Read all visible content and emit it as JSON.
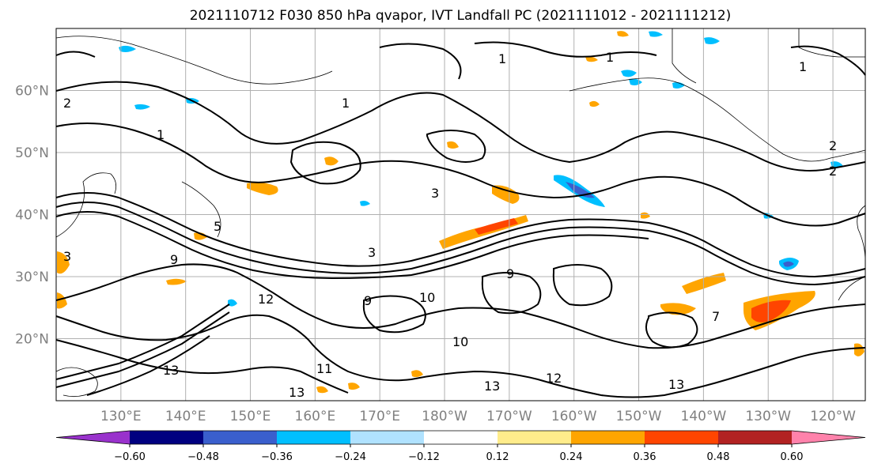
{
  "title": "2021110712 F030 850 hPa qvapor, IVT Landfall PC (2021111012 - 2021111212)",
  "map": {
    "lat_labels": [
      "60°N",
      "50°N",
      "40°N",
      "30°N",
      "20°N"
    ],
    "lat_values": [
      60,
      50,
      40,
      30,
      20
    ],
    "lat_range": [
      10,
      70
    ],
    "lon_labels": [
      "130°E",
      "140°E",
      "150°E",
      "160°E",
      "170°E",
      "180°W",
      "170°W",
      "160°W",
      "150°W",
      "140°W",
      "130°W",
      "120°W"
    ],
    "lon_values": [
      130,
      140,
      150,
      160,
      170,
      180,
      190,
      200,
      210,
      220,
      230,
      240
    ],
    "lon_range": [
      120,
      245
    ],
    "gridlines": true,
    "contour_labels": [
      "1",
      "1",
      "1",
      "1",
      "2",
      "2",
      "2",
      "3",
      "3",
      "5",
      "7",
      "9",
      "9",
      "9",
      "10",
      "10",
      "11",
      "12",
      "12",
      "13",
      "13",
      "13",
      "13",
      "3",
      "1"
    ]
  },
  "colorbar": {
    "tick_labels": [
      "−0.60",
      "−0.48",
      "−0.36",
      "−0.24",
      "−0.12",
      "0.12",
      "0.24",
      "0.36",
      "0.48",
      "0.60"
    ],
    "colors": [
      "#9932cc",
      "#000080",
      "#3a5fcd",
      "#00bfff",
      "#b0e2ff",
      "#ffffff",
      "#ffec8b",
      "#ffa500",
      "#ff4500",
      "#b22222",
      "#ff82ab"
    ],
    "extend": "both"
  }
}
